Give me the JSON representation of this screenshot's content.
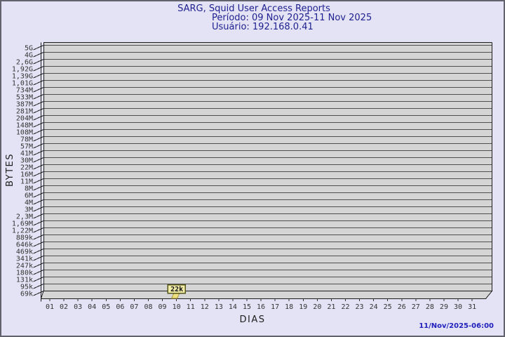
{
  "header": {
    "title": "SARG, Squid User Access Reports",
    "period": "Período: 09 Nov 2025-11 Nov 2025",
    "user": "Usuário: 192.168.0.41"
  },
  "footer": {
    "generated": "11/Nov/2025-06:00"
  },
  "chart_data": {
    "type": "bar",
    "title": "SARG, Squid User Access Reports",
    "subtitle": "Período: 09 Nov 2025-11 Nov 2025 / Usuário: 192.168.0.41",
    "xlabel": "DIAS",
    "ylabel": "BYTES",
    "scale": "log",
    "grid": true,
    "x_categories": [
      "01",
      "02",
      "03",
      "04",
      "05",
      "06",
      "07",
      "08",
      "09",
      "10",
      "11",
      "12",
      "13",
      "14",
      "15",
      "16",
      "17",
      "18",
      "19",
      "20",
      "21",
      "22",
      "23",
      "24",
      "25",
      "26",
      "27",
      "28",
      "29",
      "30",
      "31"
    ],
    "y_tick_labels": [
      "5G",
      "4G",
      "2,6G",
      "1,92G",
      "1,39G",
      "1,01G",
      "734M",
      "533M",
      "387M",
      "281M",
      "204M",
      "148M",
      "108M",
      "78M",
      "57M",
      "41M",
      "30M",
      "22M",
      "16M",
      "11M",
      "8M",
      "6M",
      "4M",
      "3M",
      "2,3M",
      "1,69M",
      "1,22M",
      "889k",
      "646k",
      "469k",
      "341k",
      "247k",
      "180k",
      "131k",
      "95k",
      "69k"
    ],
    "y_range_labels": [
      "69k",
      "5G"
    ],
    "bars": [
      {
        "day": "10",
        "value_label": "22k"
      }
    ]
  },
  "colors": {
    "background": "#e3e3f5",
    "wall": "#d5d5d5",
    "grid": "#4f4f4f",
    "frame": "#1d1d1d",
    "axis_text": "#333333",
    "title_text": "#202090",
    "timestamp_text": "#2121bd",
    "bar": "#ede07f",
    "bar_edge": "#9a8a30",
    "badge_bg": "#f2eca9",
    "badge_border": "#55551a"
  }
}
